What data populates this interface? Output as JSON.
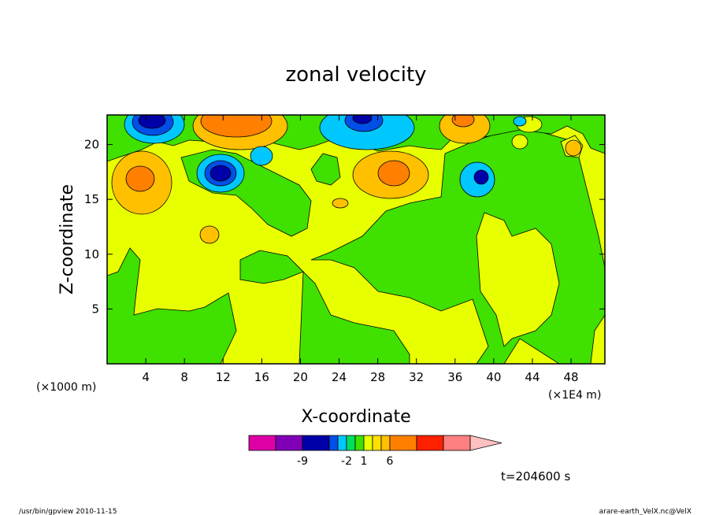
{
  "chart_data": {
    "type": "heatmap",
    "title": "zonal velocity",
    "xlabel": "X-coordinate",
    "ylabel": "Z-coordinate",
    "x_ticks": [
      4,
      8,
      12,
      16,
      20,
      24,
      28,
      32,
      36,
      40,
      44,
      48
    ],
    "y_ticks": [
      5,
      10,
      15,
      20
    ],
    "x_unit_left": "(×1000 m)",
    "x_unit_right": "(×1E4 m)",
    "xlim": [
      0,
      51.5
    ],
    "ylim": [
      0,
      22.7
    ],
    "colorbar": {
      "colors": [
        "#e000a8",
        "#8000b8",
        "#0000a8",
        "#0050e8",
        "#00c8ff",
        "#00e060",
        "#40e000",
        "#e8ff00",
        "#ffe000",
        "#ffc000",
        "#ff8000",
        "#ff2000",
        "#ff8080",
        "#ffc0c0"
      ],
      "tick_labels": [
        "-9",
        "-2",
        "1",
        "6"
      ],
      "tick_after_box": [
        1,
        4,
        6,
        9
      ],
      "extend": "max"
    },
    "blobs": [
      {
        "x": 5,
        "y": 21.8,
        "level": 2
      },
      {
        "x": 5,
        "y": 22.2,
        "level": 1
      },
      {
        "x": 12,
        "y": 17.5,
        "level": 3
      },
      {
        "x": 12,
        "y": 17.2,
        "level": 2
      },
      {
        "x": 16,
        "y": 19.5,
        "level": 4
      },
      {
        "x": 26,
        "y": 21.5,
        "level": 3
      },
      {
        "x": 26,
        "y": 22.2,
        "level": 2
      },
      {
        "x": 38.5,
        "y": 17.2,
        "level": 4
      },
      {
        "x": 38.5,
        "y": 17.0,
        "level": 2
      },
      {
        "x": 3,
        "y": 17,
        "level": 10
      },
      {
        "x": 15,
        "y": 21.5,
        "level": 10
      },
      {
        "x": 30,
        "y": 17.5,
        "level": 10
      },
      {
        "x": 36.5,
        "y": 22,
        "level": 10
      }
    ],
    "annotation": "t=204600 s"
  },
  "footer": {
    "left": "/usr/bin/gpview   2010-11-15",
    "right": "arare-earth_VelX.nc@VelX"
  }
}
